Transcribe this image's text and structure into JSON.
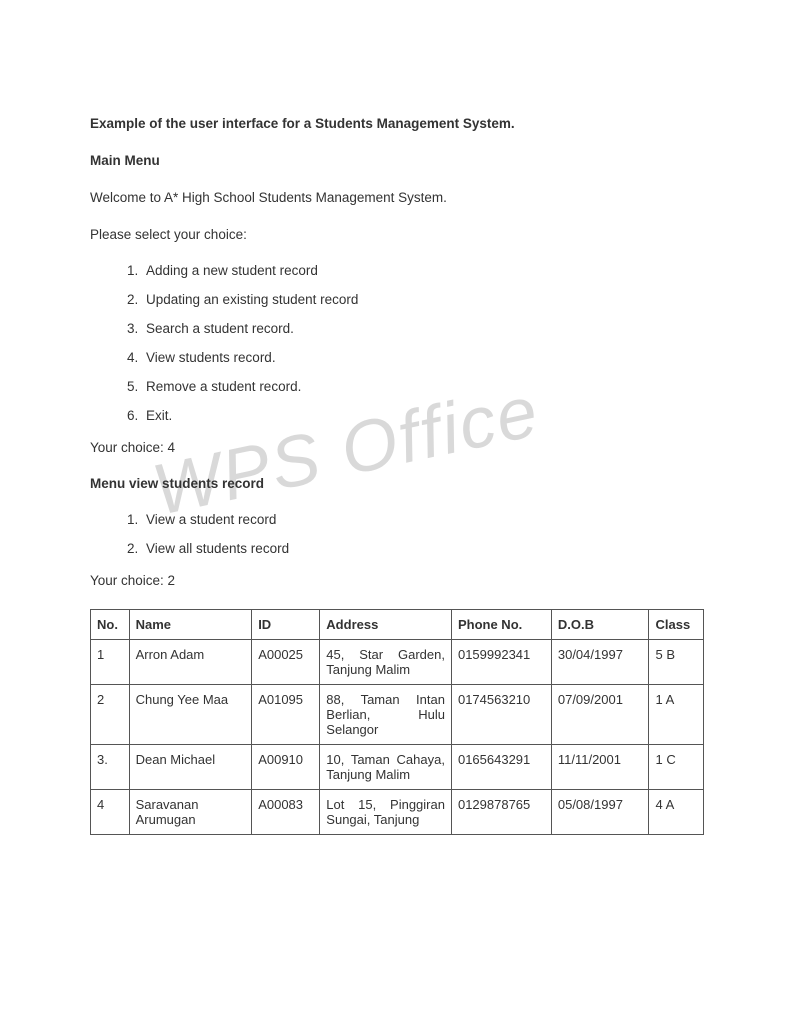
{
  "watermark": "WPS Office",
  "title": "Example of the user interface for a Students Management System.",
  "main_menu_label": "Main Menu",
  "welcome": "Welcome to A* High School Students Management System.",
  "prompt": "Please select your choice:",
  "menu_items": [
    "Adding a new student record",
    "Updating an existing student record",
    "Search a student record.",
    "View students record.",
    "Remove a student record.",
    "Exit."
  ],
  "your_choice_1": "Your choice: 4",
  "view_menu_label": "Menu view students record",
  "view_menu_items": [
    "View a student record",
    "View all students record"
  ],
  "your_choice_2": "Your choice: 2",
  "table": {
    "columns": [
      "No.",
      "Name",
      "ID",
      "Address",
      "Phone No.",
      "D.O.B",
      "Class"
    ],
    "rows": [
      [
        "1",
        "Arron Adam",
        "A00025",
        "45, Star Garden, Tanjung Malim",
        "0159992341",
        "30/04/1997",
        "5 B"
      ],
      [
        "2",
        "Chung Yee Maa",
        "A01095",
        "88, Taman Intan Berlian, Hulu Selangor",
        "0174563210",
        "07/09/2001",
        "1 A"
      ],
      [
        "3.",
        "Dean Michael",
        "A00910",
        "10, Taman Cahaya, Tanjung Malim",
        "0165643291",
        "11/11/2001",
        "1 C"
      ],
      [
        "4",
        "Saravanan Arumugan",
        "A00083",
        "Lot 15, Pinggiran Sungai, Tanjung",
        "0129878765",
        "05/08/1997",
        "4 A"
      ]
    ]
  }
}
